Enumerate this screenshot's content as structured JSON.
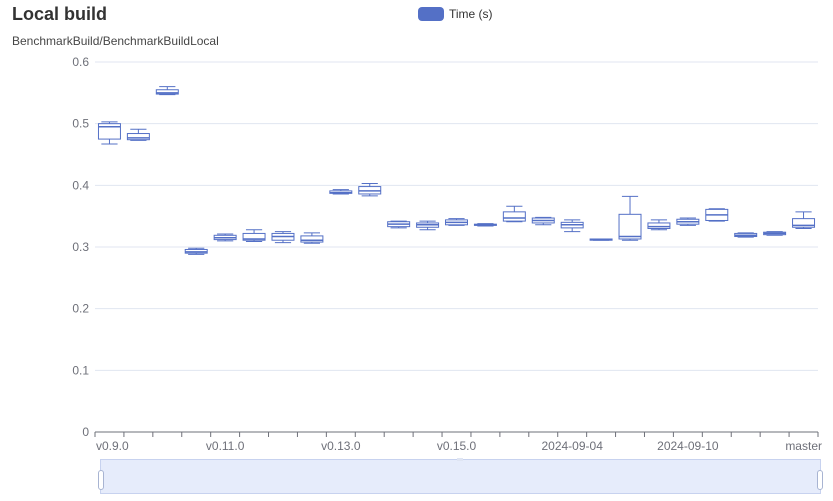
{
  "header": {
    "title": "Local build",
    "subtitle": "BenchmarkBuild/BenchmarkBuildLocal"
  },
  "legend": {
    "label": "Time (s)",
    "color": "#5470c6"
  },
  "colors": {
    "box_stroke": "#5470c6",
    "box_fill": "#ffffff",
    "grid": "#e0e6f1",
    "axis": "#6e7079"
  },
  "chart_data": {
    "type": "boxplot",
    "title": "Local build",
    "subtitle": "BenchmarkBuild/BenchmarkBuildLocal",
    "series_name": "Time (s)",
    "ylim": [
      0,
      0.6
    ],
    "yticks": [
      "0",
      "0.1",
      "0.2",
      "0.3",
      "0.4",
      "0.5",
      "0.6"
    ],
    "x_tick_labels": [
      "v0.9.0",
      "v0.11.0",
      "v0.13.0",
      "v0.15.0",
      "2024-09-04",
      "2024-09-10",
      "master"
    ],
    "grid": true,
    "legend_position": "top-center",
    "boxes": [
      {
        "min": 0.467,
        "q1": 0.475,
        "median": 0.495,
        "q3": 0.5,
        "max": 0.503
      },
      {
        "min": 0.473,
        "q1": 0.474,
        "median": 0.477,
        "q3": 0.484,
        "max": 0.491
      },
      {
        "min": 0.547,
        "q1": 0.548,
        "median": 0.55,
        "q3": 0.555,
        "max": 0.56
      },
      {
        "min": 0.288,
        "q1": 0.29,
        "median": 0.292,
        "q3": 0.296,
        "max": 0.298
      },
      {
        "min": 0.31,
        "q1": 0.312,
        "median": 0.315,
        "q3": 0.319,
        "max": 0.321
      },
      {
        "min": 0.309,
        "q1": 0.311,
        "median": 0.313,
        "q3": 0.322,
        "max": 0.328
      },
      {
        "min": 0.307,
        "q1": 0.311,
        "median": 0.317,
        "q3": 0.322,
        "max": 0.325
      },
      {
        "min": 0.306,
        "q1": 0.308,
        "median": 0.311,
        "q3": 0.318,
        "max": 0.323
      },
      {
        "min": 0.386,
        "q1": 0.387,
        "median": 0.388,
        "q3": 0.391,
        "max": 0.393
      },
      {
        "min": 0.383,
        "q1": 0.386,
        "median": 0.391,
        "q3": 0.398,
        "max": 0.403
      },
      {
        "min": 0.331,
        "q1": 0.333,
        "median": 0.337,
        "q3": 0.341,
        "max": 0.342
      },
      {
        "min": 0.328,
        "q1": 0.332,
        "median": 0.336,
        "q3": 0.339,
        "max": 0.342
      },
      {
        "min": 0.335,
        "q1": 0.336,
        "median": 0.34,
        "q3": 0.344,
        "max": 0.346
      },
      {
        "min": 0.334,
        "q1": 0.335,
        "median": 0.336,
        "q3": 0.337,
        "max": 0.338
      },
      {
        "min": 0.341,
        "q1": 0.342,
        "median": 0.347,
        "q3": 0.357,
        "max": 0.366
      },
      {
        "min": 0.336,
        "q1": 0.339,
        "median": 0.343,
        "q3": 0.347,
        "max": 0.348
      },
      {
        "min": 0.325,
        "q1": 0.331,
        "median": 0.336,
        "q3": 0.34,
        "max": 0.344
      },
      {
        "min": 0.311,
        "q1": 0.311,
        "median": 0.312,
        "q3": 0.313,
        "max": 0.313
      },
      {
        "min": 0.311,
        "q1": 0.313,
        "median": 0.317,
        "q3": 0.353,
        "max": 0.382
      },
      {
        "min": 0.328,
        "q1": 0.33,
        "median": 0.333,
        "q3": 0.339,
        "max": 0.344
      },
      {
        "min": 0.335,
        "q1": 0.337,
        "median": 0.341,
        "q3": 0.345,
        "max": 0.347
      },
      {
        "min": 0.342,
        "q1": 0.343,
        "median": 0.352,
        "q3": 0.361,
        "max": 0.362
      },
      {
        "min": 0.316,
        "q1": 0.317,
        "median": 0.319,
        "q3": 0.322,
        "max": 0.323
      },
      {
        "min": 0.319,
        "q1": 0.32,
        "median": 0.322,
        "q3": 0.324,
        "max": 0.325
      },
      {
        "min": 0.33,
        "q1": 0.332,
        "median": 0.335,
        "q3": 0.346,
        "max": 0.357
      }
    ]
  }
}
